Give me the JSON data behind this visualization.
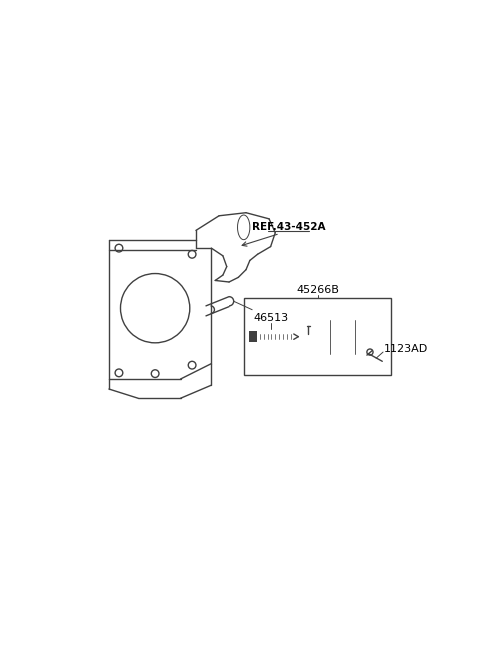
{
  "bg_color": "#ffffff",
  "line_color": "#404040",
  "label_color": "#000000",
  "ref_label": "REF.43-452A",
  "label_45266B": "45266B",
  "label_46513": "46513",
  "label_1123AD": "1123AD",
  "fig_width": 4.8,
  "fig_height": 6.56
}
